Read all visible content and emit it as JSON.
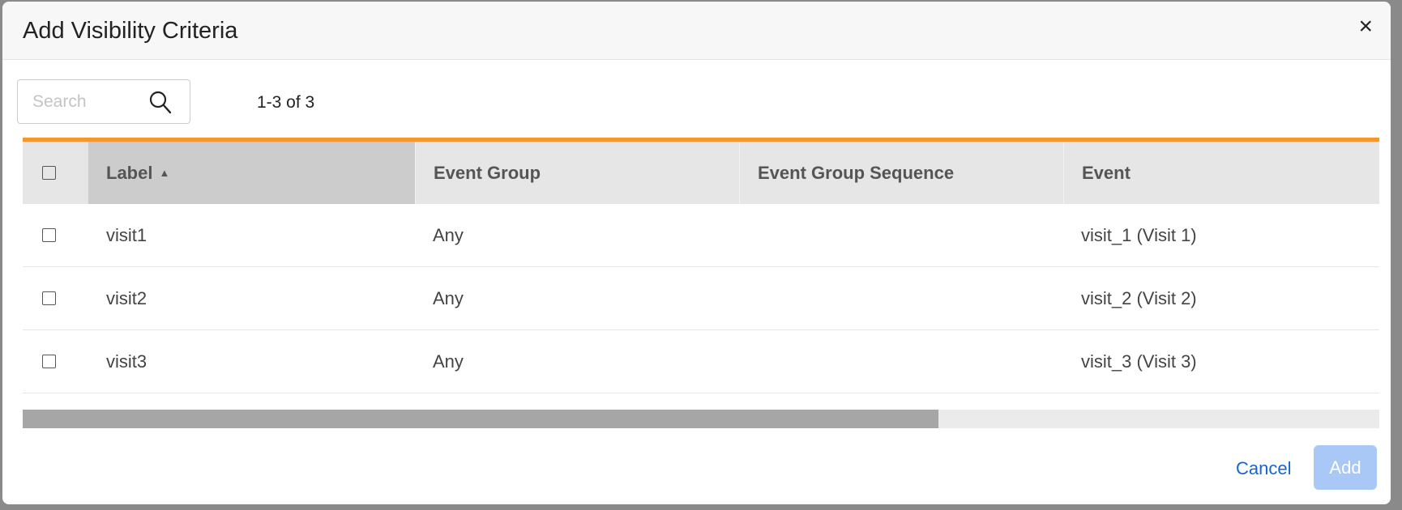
{
  "dialog": {
    "title": "Add Visibility Criteria",
    "close_icon": "×"
  },
  "search": {
    "placeholder": "Search",
    "value": "",
    "count": "1-3 of 3"
  },
  "table": {
    "headers": [
      "Label",
      "Event Group",
      "Event Group Sequence",
      "Event"
    ],
    "sort": {
      "column": "Label",
      "direction": "ascending",
      "icon": "▲"
    },
    "rows": [
      {
        "label": "visit1",
        "event_group": "Any",
        "sequence": "",
        "event": "visit_1 (Visit 1)"
      },
      {
        "label": "visit2",
        "event_group": "Any",
        "sequence": "",
        "event": "visit_2 (Visit 2)"
      },
      {
        "label": "visit3",
        "event_group": "Any",
        "sequence": "",
        "event": "visit_3 (Visit 3)"
      }
    ]
  },
  "footer": {
    "cancel": "Cancel",
    "add": "Add"
  },
  "colors": {
    "accent_bar": "#f7962b",
    "link": "#1565d8",
    "add_disabled": "#aac8f5"
  }
}
